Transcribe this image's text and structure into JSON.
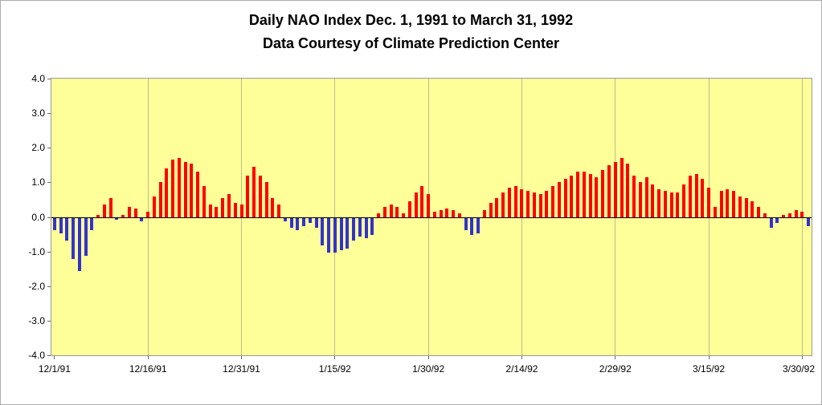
{
  "title": {
    "line1": "Daily NAO Index Dec. 1, 1991 to March 31, 1992",
    "line2": "Data Courtesy of Climate Prediction Center"
  },
  "chart_data": {
    "type": "bar",
    "title": "Daily NAO Index Dec. 1, 1991 to March 31, 1992",
    "subtitle": "Data Courtesy of Climate Prediction Center",
    "xlabel": "",
    "ylabel": "",
    "ylim": [
      -4.0,
      4.0
    ],
    "y_tick_values": [
      4.0,
      3.0,
      2.0,
      1.0,
      0.0,
      -1.0,
      -2.0,
      -3.0,
      -4.0
    ],
    "y_tick_labels": [
      "4.0",
      "3.0",
      "2.0",
      "1.0",
      "0.0",
      "-1.0",
      "-2.0",
      "-3.0",
      "-4.0"
    ],
    "x_tick_labels": [
      "12/1/91",
      "12/16/91",
      "12/31/91",
      "1/15/92",
      "1/30/92",
      "2/14/92",
      "2/29/92",
      "3/15/92",
      "3/30/92"
    ],
    "x_tick_indices": [
      0,
      15,
      30,
      45,
      60,
      75,
      90,
      105,
      120
    ],
    "x_start_date": "12/1/91",
    "x_end_date": "3/31/92",
    "grid": "vertical-only",
    "legend": "none",
    "colors": {
      "positive_bar": "#ff0000",
      "negative_bar": "#3333cc",
      "plot_background": "#ffff99",
      "gridline": "#bdbd8e",
      "zero_line": "#000000"
    },
    "values": [
      -0.35,
      -0.45,
      -0.65,
      -1.2,
      -1.55,
      -1.1,
      -0.35,
      0.05,
      0.35,
      0.55,
      -0.05,
      0.05,
      0.3,
      0.25,
      -0.1,
      0.15,
      0.6,
      1.0,
      1.4,
      1.65,
      1.7,
      1.6,
      1.55,
      1.3,
      0.9,
      0.35,
      0.3,
      0.55,
      0.65,
      0.4,
      0.35,
      1.2,
      1.45,
      1.2,
      1.0,
      0.55,
      0.35,
      -0.1,
      -0.3,
      -0.35,
      -0.25,
      -0.15,
      -0.3,
      -0.8,
      -1.0,
      -1.0,
      -0.95,
      -0.9,
      -0.65,
      -0.55,
      -0.6,
      -0.5,
      0.1,
      0.3,
      0.35,
      0.3,
      0.1,
      0.45,
      0.7,
      0.9,
      0.65,
      0.15,
      0.2,
      0.25,
      0.2,
      0.1,
      -0.35,
      -0.5,
      -0.45,
      0.2,
      0.4,
      0.55,
      0.7,
      0.85,
      0.9,
      0.8,
      0.75,
      0.7,
      0.65,
      0.75,
      0.9,
      1.0,
      1.1,
      1.2,
      1.3,
      1.3,
      1.25,
      1.15,
      1.35,
      1.5,
      1.6,
      1.7,
      1.55,
      1.2,
      1.0,
      1.15,
      0.95,
      0.8,
      0.75,
      0.7,
      0.7,
      0.95,
      1.2,
      1.25,
      1.1,
      0.85,
      0.3,
      0.75,
      0.8,
      0.75,
      0.6,
      0.55,
      0.45,
      0.3,
      0.1,
      -0.3,
      -0.15,
      0.05,
      0.1,
      0.2,
      0.15,
      -0.25
    ]
  }
}
